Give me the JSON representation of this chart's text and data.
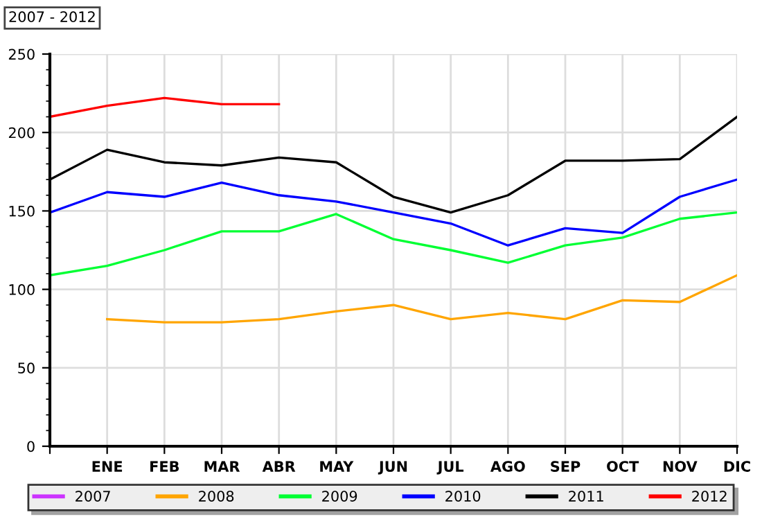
{
  "chart_data": {
    "type": "line",
    "title": "2007 - 2012",
    "categories": [
      null,
      "ENE",
      "FEB",
      "MAR",
      "ABR",
      "MAY",
      "JUN",
      "JUL",
      "AGO",
      "SEP",
      "OCT",
      "NOV",
      "DIC"
    ],
    "series": [
      {
        "name": "2007",
        "color": "#cc33ff",
        "values": [
          null,
          null,
          null,
          null,
          null,
          null,
          null,
          null,
          null,
          null,
          null,
          null,
          null
        ]
      },
      {
        "name": "2008",
        "color": "#ffa500",
        "values": [
          null,
          81,
          79,
          79,
          81,
          86,
          90,
          81,
          85,
          81,
          93,
          92,
          109
        ]
      },
      {
        "name": "2009",
        "color": "#00ff33",
        "values": [
          109,
          115,
          125,
          137,
          137,
          148,
          132,
          125,
          117,
          128,
          133,
          145,
          149
        ]
      },
      {
        "name": "2010",
        "color": "#0000ff",
        "values": [
          149,
          162,
          159,
          168,
          160,
          156,
          149,
          142,
          128,
          139,
          136,
          159,
          170
        ]
      },
      {
        "name": "2011",
        "color": "#000000",
        "values": [
          170,
          189,
          181,
          179,
          184,
          181,
          159,
          149,
          160,
          182,
          182,
          183,
          210
        ]
      },
      {
        "name": "2012",
        "color": "#ff0000",
        "values": [
          210,
          217,
          222,
          218,
          218,
          null,
          null,
          null,
          null,
          null,
          null,
          null,
          null
        ]
      }
    ],
    "ylim": [
      0,
      250
    ],
    "yticks": [
      0,
      50,
      100,
      150,
      200,
      250
    ],
    "grid": true,
    "legend": "bottom",
    "marker": "none",
    "line_style": "solid"
  }
}
